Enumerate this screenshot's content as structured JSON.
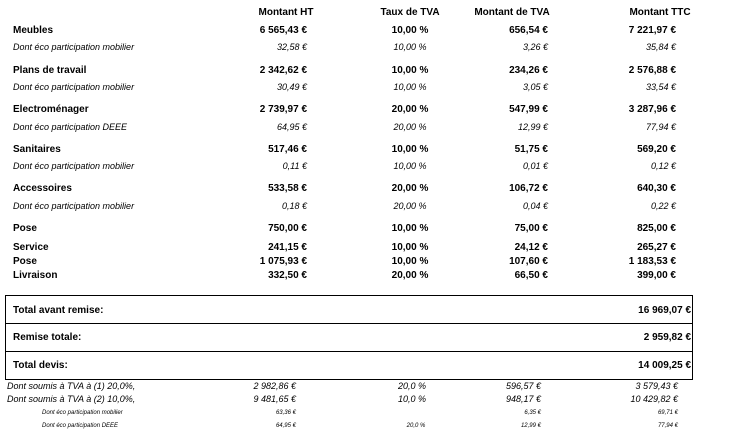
{
  "headers": {
    "ht": "Montant HT",
    "taux": "Taux de TVA",
    "tva": "Montant de TVA",
    "ttc": "Montant TTC"
  },
  "sections": [
    {
      "label": "Meubles",
      "ht": "6 565,43 €",
      "taux": "10,00 %",
      "tva": "656,54 €",
      "ttc": "7 221,97 €",
      "sub": {
        "label": "Dont éco participation mobilier",
        "ht": "32,58 €",
        "taux": "10,00 %",
        "tva": "3,26 €",
        "ttc": "35,84 €"
      }
    },
    {
      "label": "Plans de travail",
      "ht": "2 342,62 €",
      "taux": "10,00 %",
      "tva": "234,26 €",
      "ttc": "2 576,88 €",
      "sub": {
        "label": "Dont éco participation mobilier",
        "ht": "30,49 €",
        "taux": "10,00 %",
        "tva": "3,05 €",
        "ttc": "33,54 €"
      }
    },
    {
      "label": "Electroménager",
      "ht": "2 739,97 €",
      "taux": "20,00 %",
      "tva": "547,99 €",
      "ttc": "3 287,96 €",
      "sub": {
        "label": "Dont éco participation DEEE",
        "ht": "64,95 €",
        "taux": "20,00 %",
        "tva": "12,99 €",
        "ttc": "77,94 €"
      }
    },
    {
      "label": "Sanitaires",
      "ht": "517,46 €",
      "taux": "10,00 %",
      "tva": "51,75 €",
      "ttc": "569,20 €",
      "sub": {
        "label": "Dont éco participation mobilier",
        "ht": "0,11 €",
        "taux": "10,00 %",
        "tva": "0,01 €",
        "ttc": "0,12 €"
      }
    },
    {
      "label": "Accessoires",
      "ht": "533,58 €",
      "taux": "20,00 %",
      "tva": "106,72 €",
      "ttc": "640,30 €",
      "sub": {
        "label": "Dont éco participation mobilier",
        "ht": "0,18 €",
        "taux": "20,00 %",
        "tva": "0,04 €",
        "ttc": "0,22 €"
      }
    }
  ],
  "services": [
    {
      "label": "Pose",
      "ht": "750,00 €",
      "taux": "10,00 %",
      "tva": "75,00 €",
      "ttc": "825,00 €"
    },
    {
      "label": "Service",
      "ht": "241,15 €",
      "taux": "10,00 %",
      "tva": "24,12 €",
      "ttc": "265,27 €"
    },
    {
      "label": "Pose",
      "ht": "1 075,93 €",
      "taux": "10,00 %",
      "tva": "107,60 €",
      "ttc": "1 183,53 €"
    },
    {
      "label": "Livraison",
      "ht": "332,50 €",
      "taux": "20,00 %",
      "tva": "66,50 €",
      "ttc": "399,00 €"
    }
  ],
  "totals": [
    {
      "label": "Total avant remise:",
      "value": "16 969,07 €"
    },
    {
      "label": "Remise totale:",
      "value": "2 959,82 €"
    },
    {
      "label": "Total devis:",
      "value": "14 009,25 €"
    }
  ],
  "tva_summary": [
    {
      "label": "Dont soumis à TVA à (1) 20,0%,",
      "ht": "2 982,86 €",
      "taux": "20,0 %",
      "tva": "596,57 €",
      "ttc": "3 579,43 €"
    },
    {
      "label": "Dont soumis à TVA à (2) 10,0%,",
      "ht": "9 481,65 €",
      "taux": "10,0 %",
      "tva": "948,17 €",
      "ttc": "10 429,82 €"
    }
  ],
  "eco_summary": [
    {
      "label": "Dont éco participation mobilier",
      "ht": "63,36 €",
      "taux": "",
      "tva": "6,35 €",
      "ttc": "69,71 €"
    },
    {
      "label": "Dont éco participation DEEE",
      "ht": "64,95 €",
      "taux": "20,0 %",
      "tva": "12,99 €",
      "ttc": "77,94 €"
    }
  ]
}
